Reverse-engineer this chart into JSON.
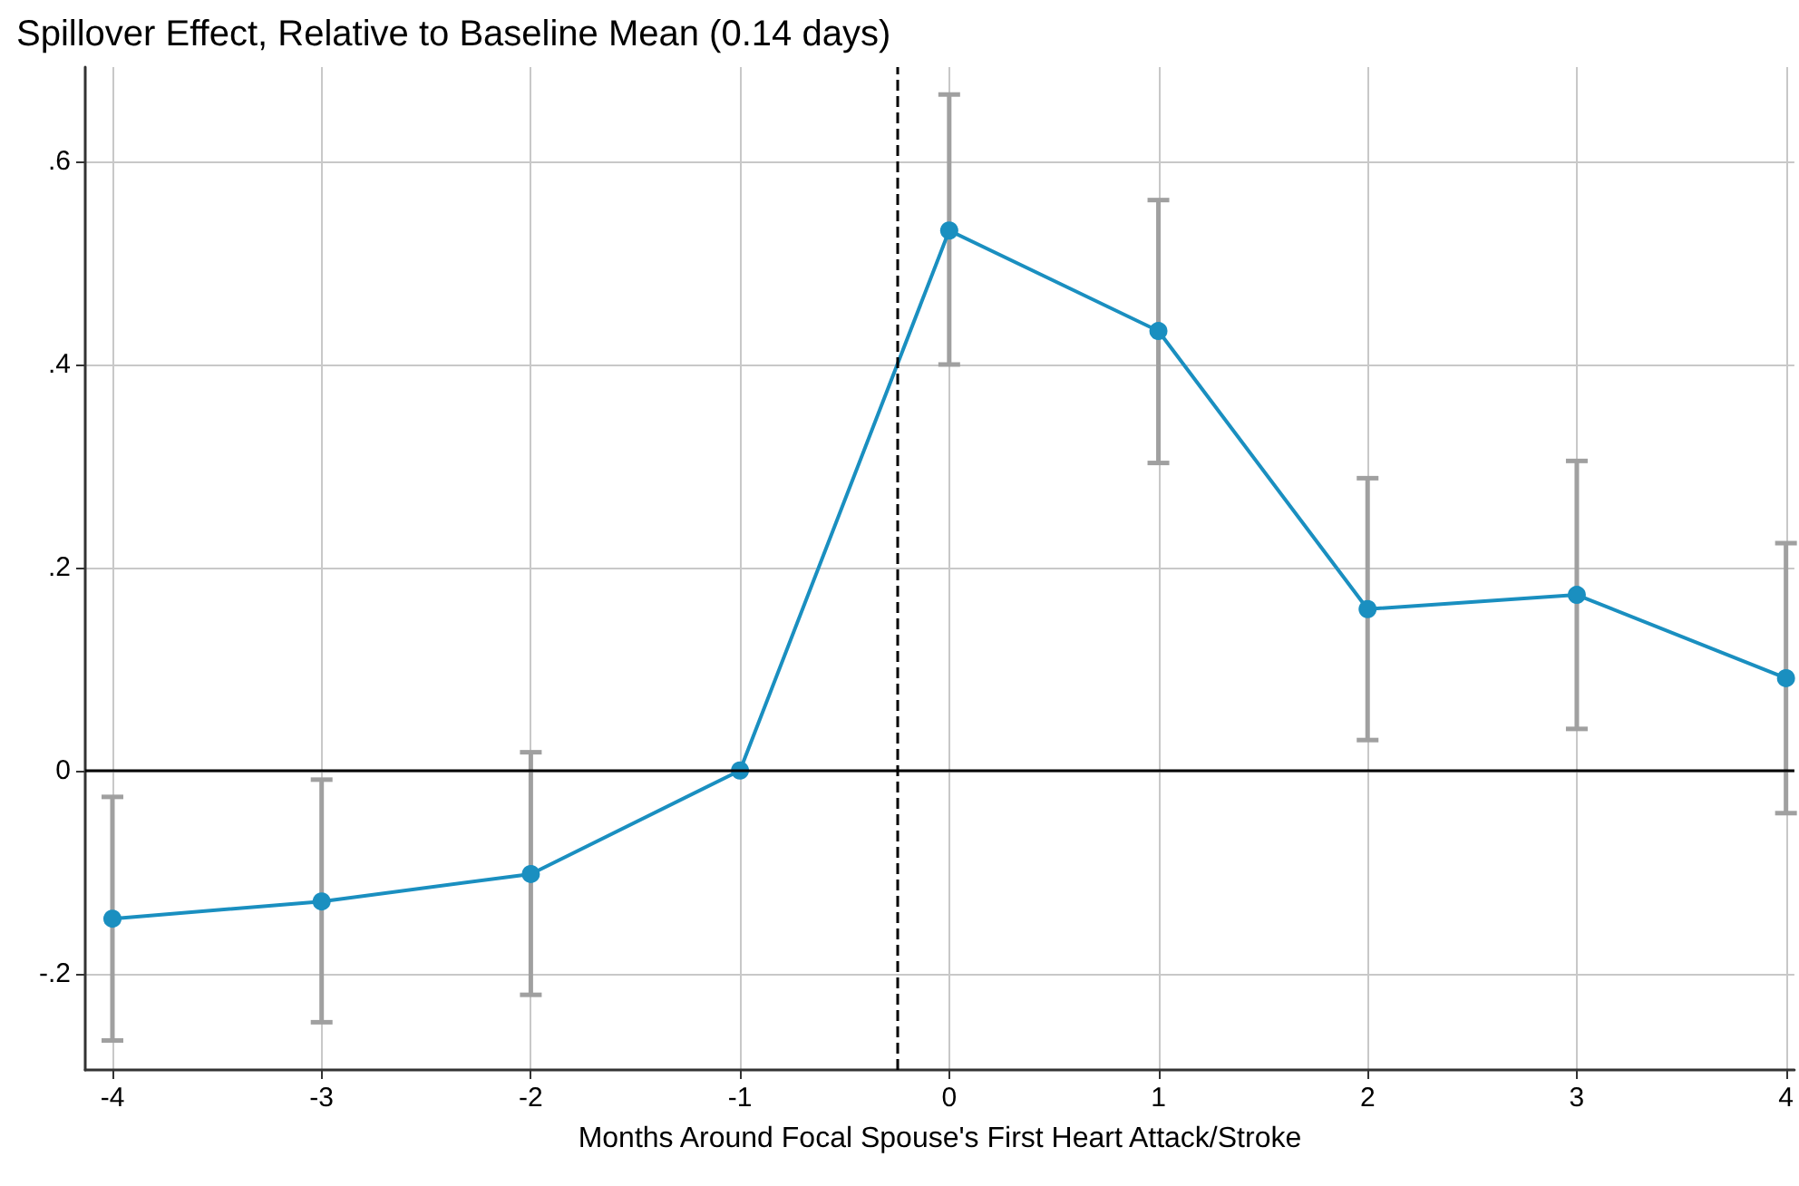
{
  "chart_data": {
    "type": "line",
    "title": "Spillover Effect, Relative to Baseline Mean (0.14 days)",
    "xlabel": "Months Around Focal Spouse's First Heart Attack/Stroke",
    "x": [
      -4,
      -3,
      -2,
      -1,
      0,
      1,
      2,
      3,
      4
    ],
    "series": [
      {
        "color": "#1a8fc0",
        "values": [
          -0.146,
          -0.129,
          -0.102,
          0,
          0.532,
          0.433,
          0.159,
          0.173,
          0.091
        ],
        "errors": [
          [
            -0.266,
            -0.026
          ],
          [
            -0.248,
            -0.009
          ],
          [
            -0.221,
            0.018
          ],
          null,
          [
            0.4,
            0.666
          ],
          [
            0.303,
            0.562
          ],
          [
            0.03,
            0.288
          ],
          [
            0.041,
            0.305
          ],
          [
            -0.042,
            0.224
          ]
        ]
      }
    ],
    "xlim": [
      -4.13,
      4.04
    ],
    "ylim": [
      -0.295,
      0.693
    ],
    "xticks": [
      -4,
      -3,
      -2,
      -1,
      0,
      1,
      2,
      3,
      4
    ],
    "yticks": [
      {
        "value": -0.2,
        "label": "-.2"
      },
      {
        "value": 0,
        "label": "0"
      },
      {
        "value": 0.2,
        "label": ".2"
      },
      {
        "value": 0.4,
        "label": ".4"
      },
      {
        "value": 0.6,
        "label": ".6"
      }
    ],
    "ref_lines": [
      {
        "axis": "x",
        "value": -0.25,
        "color": "#000000",
        "line_style": "dashed"
      },
      {
        "axis": "y",
        "value": 0,
        "color": "#000000",
        "line_style": "solid"
      }
    ],
    "grid": true,
    "marker": "circle",
    "line_style": "solid"
  }
}
